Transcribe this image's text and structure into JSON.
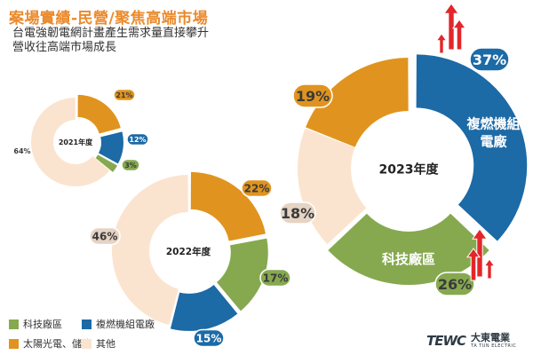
{
  "header": {
    "title": "案場實績-民營/聚焦高端市場",
    "subtitle": "台電強韌電網計畫產生需求量直接攀升\n營收往高端市場成長"
  },
  "colors": {
    "tech_park": "#86a94f",
    "cogeneration": "#1c6aa6",
    "solar": "#e0941f",
    "other": "#fbe4cf",
    "arrow": "#e3262a",
    "title": "#ea8a2c"
  },
  "legend": [
    {
      "label": "科技廠區",
      "color": "#86a94f"
    },
    {
      "label": "複燃機組電廠",
      "color": "#1c6aa6"
    },
    {
      "label": "太陽光電、儲能",
      "color": "#e0941f"
    },
    {
      "label": "其他",
      "color": "#fbe4cf"
    }
  ],
  "chart_data": [
    {
      "type": "pie",
      "title": "2021年度",
      "slices": [
        {
          "name": "太陽光電、儲能",
          "value": 21,
          "label": "21%"
        },
        {
          "name": "複燃機組電廠",
          "value": 12,
          "label": "12%"
        },
        {
          "name": "科技廠區",
          "value": 3,
          "label": "3%"
        },
        {
          "name": "其他",
          "value": 64,
          "label": "64%"
        }
      ]
    },
    {
      "type": "pie",
      "title": "2022年度",
      "slices": [
        {
          "name": "太陽光電、儲能",
          "value": 22,
          "label": "22%"
        },
        {
          "name": "科技廠區",
          "value": 17,
          "label": "17%"
        },
        {
          "name": "複燃機組電廠",
          "value": 15,
          "label": "15%"
        },
        {
          "name": "其他",
          "value": 46,
          "label": "46%"
        }
      ]
    },
    {
      "type": "pie",
      "title": "2023年度",
      "slices": [
        {
          "name": "複燃機組電廠",
          "value": 37,
          "label": "37%",
          "inner_label": "複燃機組\n電廠"
        },
        {
          "name": "科技廠區",
          "value": 26,
          "label": "26%",
          "inner_label": "科技廠區"
        },
        {
          "name": "其他",
          "value": 18,
          "label": "18%"
        },
        {
          "name": "太陽光電、儲能",
          "value": 19,
          "label": "19%"
        }
      ]
    }
  ],
  "logo": {
    "mark": "TEWC",
    "name": "大東電業",
    "name_en": "TA TUN ELECTRIC"
  }
}
